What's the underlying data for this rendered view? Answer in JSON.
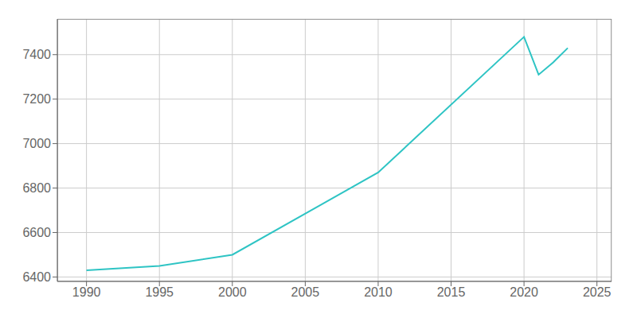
{
  "chart_data": {
    "type": "line",
    "x": [
      1990,
      1995,
      2000,
      2010,
      2020,
      2021,
      2022,
      2023
    ],
    "values": [
      6430,
      6450,
      6500,
      6870,
      7480,
      7310,
      7365,
      7430
    ],
    "color": "#2EC4C4",
    "xlim": [
      1988,
      2026
    ],
    "ylim": [
      6380,
      7560
    ],
    "xticks": [
      1990,
      1995,
      2000,
      2005,
      2010,
      2015,
      2020,
      2025
    ],
    "yticks": [
      6400,
      6600,
      6800,
      7000,
      7200,
      7400
    ],
    "grid": true
  }
}
